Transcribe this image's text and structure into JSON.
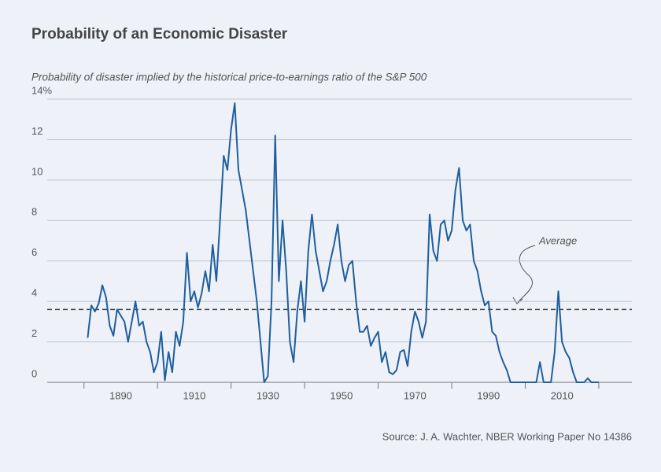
{
  "chart_data": {
    "type": "line",
    "title": "Probability of an Economic Disaster",
    "subtitle": "Probability of disaster implied by the historical price-to-earnings ratio of the S&P 500",
    "source": "Source: J. A. Wachter, NBER Working Paper No 14386",
    "x": [
      1881,
      1882,
      1883,
      1884,
      1885,
      1886,
      1887,
      1888,
      1889,
      1890,
      1891,
      1892,
      1893,
      1894,
      1895,
      1896,
      1897,
      1898,
      1899,
      1900,
      1901,
      1902,
      1903,
      1904,
      1905,
      1906,
      1907,
      1908,
      1909,
      1910,
      1911,
      1912,
      1913,
      1914,
      1915,
      1916,
      1917,
      1918,
      1919,
      1920,
      1921,
      1922,
      1923,
      1924,
      1925,
      1926,
      1927,
      1928,
      1929,
      1930,
      1931,
      1932,
      1933,
      1934,
      1935,
      1936,
      1937,
      1938,
      1939,
      1940,
      1941,
      1942,
      1943,
      1944,
      1945,
      1946,
      1947,
      1948,
      1949,
      1950,
      1951,
      1952,
      1953,
      1954,
      1955,
      1956,
      1957,
      1958,
      1959,
      1960,
      1961,
      1962,
      1963,
      1964,
      1965,
      1966,
      1967,
      1968,
      1969,
      1970,
      1971,
      1972,
      1973,
      1974,
      1975,
      1976,
      1977,
      1978,
      1979,
      1980,
      1981,
      1982,
      1983,
      1984,
      1985,
      1986,
      1987,
      1988,
      1989,
      1990,
      1991,
      1992,
      1993,
      1994,
      1995,
      1996,
      1997,
      1998,
      1999,
      2000,
      2001,
      2002,
      2003,
      2004,
      2005,
      2006,
      2007,
      2008,
      2009,
      2010,
      2011,
      2012,
      2013,
      2014,
      2015,
      2016,
      2017,
      2018,
      2019,
      2020
    ],
    "series": [
      {
        "color": "#1f5f9e",
        "values": [
          2.2,
          3.8,
          3.5,
          3.9,
          4.8,
          4.2,
          2.8,
          2.3,
          3.6,
          3.3,
          3.0,
          2.0,
          3.0,
          4.0,
          2.8,
          3.0,
          2.0,
          1.5,
          0.5,
          1.0,
          2.5,
          0.1,
          1.5,
          0.5,
          2.5,
          1.8,
          3.0,
          6.4,
          4.0,
          4.5,
          3.7,
          4.4,
          5.5,
          4.5,
          6.8,
          5.0,
          8.0,
          11.2,
          10.5,
          12.5,
          13.8,
          10.5,
          9.5,
          8.5,
          7.0,
          5.5,
          4.0,
          2.0,
          0.0,
          0.3,
          4.0,
          12.2,
          5.0,
          8.0,
          5.5,
          2.0,
          1.0,
          3.5,
          5.0,
          3.0,
          6.5,
          8.3,
          6.5,
          5.5,
          4.5,
          5.0,
          6.0,
          6.8,
          7.8,
          6.0,
          5.0,
          5.8,
          6.0,
          4.0,
          2.5,
          2.5,
          2.8,
          1.8,
          2.2,
          2.5,
          1.0,
          1.5,
          0.5,
          0.4,
          0.6,
          1.5,
          1.6,
          0.8,
          2.5,
          3.5,
          3.0,
          2.2,
          3.0,
          8.3,
          6.5,
          6.0,
          7.8,
          8.0,
          7.0,
          7.5,
          9.5,
          10.6,
          8.0,
          7.5,
          7.8,
          6.0,
          5.5,
          4.5,
          3.8,
          4.0,
          2.5,
          2.3,
          1.5,
          1.0,
          0.6,
          0,
          0,
          0,
          0,
          0,
          0,
          0,
          0,
          1.0,
          0,
          0,
          0,
          1.5,
          4.5,
          2.0,
          1.5,
          1.2,
          0.5,
          0,
          0,
          0,
          0.2,
          0,
          0,
          0
        ]
      }
    ],
    "average": {
      "value": 3.6,
      "label": "Average"
    },
    "xlim": [
      1870,
      2029
    ],
    "xticks": [
      1890,
      1910,
      1930,
      1950,
      1970,
      1990,
      2010
    ],
    "minor_xticks": [
      1880,
      1900,
      1920,
      1940,
      1960,
      1980,
      2000,
      2020
    ],
    "ylim": [
      0,
      14
    ],
    "yticks": [
      0,
      2,
      4,
      6,
      8,
      10,
      12,
      {
        "value": 14,
        "label": "14%"
      }
    ],
    "grid": true
  }
}
